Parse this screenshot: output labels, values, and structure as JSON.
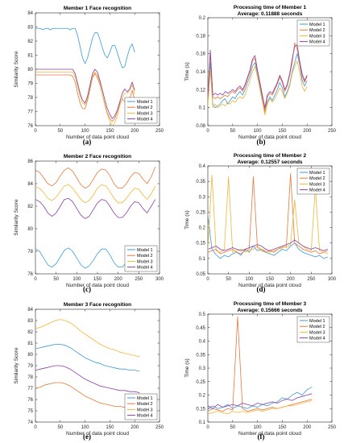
{
  "colors": {
    "model_1": "#3d9ad8",
    "model_2": "#e8773e",
    "model_3": "#f0b63a",
    "model_4": "#8a3fa3",
    "axis": "#262626",
    "grid": "#d9d9d9"
  },
  "chart_data": [
    {
      "id": "a",
      "type": "line",
      "panel_label": "(a)",
      "title": "Member 1 Face recognition",
      "subtitle": "",
      "xlabel": "Number of data point cloud",
      "ylabel": "Similarity Score",
      "xlim": [
        0,
        250
      ],
      "ylim": [
        76,
        84
      ],
      "xticks": [
        "0",
        "50",
        "100",
        "150",
        "200",
        "250"
      ],
      "yticks": [
        "76",
        "77",
        "78",
        "79",
        "80",
        "81",
        "82",
        "83",
        "84"
      ],
      "legend_position": "bottom-right",
      "x_step": 5,
      "series": [
        {
          "name": "Model 1",
          "values": [
            82.9,
            82.9,
            82.9,
            82.8,
            82.9,
            82.9,
            82.8,
            82.9,
            82.9,
            82.9,
            82.9,
            82.9,
            82.9,
            82.9,
            82.8,
            82.9,
            82.9,
            82.4,
            81.6,
            80.8,
            80.4,
            80.8,
            81.5,
            82.2,
            82.6,
            82.6,
            82.1,
            81.5,
            81.0,
            80.8,
            81.2,
            81.7,
            81.7,
            81.2,
            80.6,
            80.1,
            80.2,
            80.9,
            81.5,
            81.8,
            81.2
          ]
        },
        {
          "name": "Model 2",
          "values": [
            79.6,
            79.6,
            79.6,
            79.6,
            79.6,
            79.6,
            79.6,
            79.6,
            79.6,
            79.6,
            79.6,
            79.6,
            79.6,
            79.6,
            79.6,
            79.5,
            79.1,
            78.3,
            77.6,
            77.2,
            77.2,
            77.8,
            78.6,
            79.4,
            79.7,
            79.4,
            78.9,
            78.2,
            77.5,
            76.9,
            76.5,
            76.3,
            76.5,
            77.0,
            77.6,
            77.9,
            77.7,
            77.5,
            77.9,
            78.5,
            77.8
          ]
        },
        {
          "name": "Model 3",
          "values": [
            79.8,
            79.8,
            79.8,
            79.8,
            79.8,
            79.8,
            79.8,
            79.8,
            79.8,
            79.8,
            79.8,
            79.8,
            79.8,
            79.8,
            79.8,
            79.8,
            79.5,
            78.8,
            78.1,
            77.6,
            77.5,
            78.0,
            78.8,
            79.5,
            79.8,
            79.6,
            79.0,
            78.2,
            77.4,
            76.8,
            76.3,
            76.0,
            76.2,
            76.7,
            77.4,
            78.0,
            78.3,
            78.3,
            78.5,
            78.9,
            78.2
          ]
        },
        {
          "name": "Model 4",
          "values": [
            80.0,
            80.0,
            80.0,
            80.0,
            80.0,
            80.0,
            80.0,
            80.0,
            80.0,
            80.0,
            80.0,
            80.0,
            80.0,
            80.0,
            80.0,
            80.0,
            79.7,
            79.0,
            78.3,
            77.8,
            77.6,
            78.1,
            78.9,
            79.7,
            80.0,
            79.8,
            79.2,
            78.5,
            77.8,
            77.2,
            76.8,
            76.5,
            76.7,
            77.1,
            77.7,
            78.3,
            78.6,
            78.4,
            78.6,
            79.1,
            78.5
          ]
        }
      ]
    },
    {
      "id": "b",
      "type": "line",
      "panel_label": "(b)",
      "title": "Processing time of Member 1",
      "subtitle": "Average: 0.11888 seconds",
      "xlabel": "Number of data point cloud",
      "ylabel": "Time (s)",
      "xlim": [
        0,
        250
      ],
      "ylim": [
        0.08,
        0.2
      ],
      "xticks": [
        "0",
        "50",
        "100",
        "150",
        "200",
        "250"
      ],
      "yticks": [
        "0.08",
        "0.1",
        "0.12",
        "0.14",
        "0.16",
        "0.18",
        "0.2"
      ],
      "legend_position": "top-right",
      "x_step": 5,
      "series": [
        {
          "name": "Model 1",
          "values": [
            0.106,
            0.15,
            0.104,
            0.1,
            0.102,
            0.104,
            0.108,
            0.11,
            0.104,
            0.108,
            0.112,
            0.11,
            0.115,
            0.118,
            0.114,
            0.12,
            0.128,
            0.135,
            0.146,
            0.15,
            0.138,
            0.124,
            0.11,
            0.098,
            0.106,
            0.112,
            0.108,
            0.114,
            0.12,
            0.128,
            0.122,
            0.112,
            0.118,
            0.126,
            0.14,
            0.15,
            0.16,
            0.148,
            0.13,
            0.124,
            0.13
          ]
        },
        {
          "name": "Model 2",
          "values": [
            0.108,
            0.16,
            0.112,
            0.11,
            0.112,
            0.11,
            0.112,
            0.114,
            0.112,
            0.116,
            0.118,
            0.116,
            0.12,
            0.122,
            0.118,
            0.124,
            0.132,
            0.14,
            0.152,
            0.155,
            0.14,
            0.126,
            0.112,
            0.095,
            0.112,
            0.116,
            0.114,
            0.12,
            0.126,
            0.134,
            0.128,
            0.118,
            0.124,
            0.136,
            0.15,
            0.172,
            0.165,
            0.15,
            0.135,
            0.128,
            0.135
          ]
        },
        {
          "name": "Model 3",
          "values": [
            0.102,
            0.142,
            0.1,
            0.104,
            0.1,
            0.102,
            0.104,
            0.102,
            0.106,
            0.104,
            0.108,
            0.106,
            0.11,
            0.112,
            0.11,
            0.114,
            0.122,
            0.13,
            0.14,
            0.146,
            0.134,
            0.12,
            0.106,
            0.092,
            0.104,
            0.11,
            0.106,
            0.11,
            0.116,
            0.122,
            0.118,
            0.11,
            0.116,
            0.124,
            0.138,
            0.146,
            0.152,
            0.14,
            0.124,
            0.118,
            0.124
          ]
        },
        {
          "name": "Model 4",
          "values": [
            0.112,
            0.164,
            0.114,
            0.116,
            0.114,
            0.116,
            0.114,
            0.118,
            0.116,
            0.118,
            0.12,
            0.118,
            0.122,
            0.124,
            0.12,
            0.126,
            0.134,
            0.142,
            0.154,
            0.158,
            0.142,
            0.128,
            0.114,
            0.1,
            0.114,
            0.118,
            0.116,
            0.122,
            0.128,
            0.136,
            0.13,
            0.12,
            0.126,
            0.138,
            0.154,
            0.168,
            0.17,
            0.152,
            0.138,
            0.13,
            0.136
          ]
        }
      ]
    },
    {
      "id": "c",
      "type": "line",
      "panel_label": "(c)",
      "title": "Member 2 Face recognition",
      "subtitle": "",
      "xlabel": "Number of data point cloud",
      "ylabel": "Similarity Score",
      "xlim": [
        0,
        300
      ],
      "ylim": [
        76,
        86
      ],
      "xticks": [
        "0",
        "50",
        "100",
        "150",
        "200",
        "250",
        "300"
      ],
      "yticks": [
        "76",
        "78",
        "80",
        "82",
        "84",
        "86"
      ],
      "legend_position": "bottom-right",
      "x_step": 10,
      "series": [
        {
          "name": "Model 1",
          "values": [
            78.2,
            78.0,
            77.4,
            76.8,
            76.6,
            76.9,
            77.5,
            78.1,
            78.3,
            78.0,
            77.4,
            76.8,
            76.5,
            76.7,
            77.2,
            77.8,
            78.2,
            78.2,
            77.7,
            77.0,
            76.6,
            76.6,
            77.0,
            77.6,
            78.0,
            77.9,
            77.3,
            76.7,
            76.5,
            76.8
          ]
        },
        {
          "name": "Model 2",
          "values": [
            85.2,
            85.0,
            84.5,
            84.0,
            83.8,
            84.1,
            84.7,
            85.2,
            85.4,
            85.1,
            84.5,
            83.9,
            83.6,
            83.8,
            84.4,
            85.0,
            85.3,
            85.2,
            84.7,
            84.0,
            83.6,
            83.6,
            84.0,
            84.6,
            85.0,
            84.9,
            84.4,
            84.0,
            84.6,
            85.5
          ]
        },
        {
          "name": "Model 3",
          "values": [
            83.7,
            83.6,
            83.2,
            82.7,
            82.5,
            82.8,
            83.3,
            83.8,
            83.9,
            83.6,
            83.1,
            82.6,
            82.3,
            82.5,
            83.0,
            83.6,
            83.9,
            83.8,
            83.3,
            82.7,
            82.3,
            82.3,
            82.7,
            83.2,
            83.6,
            83.5,
            83.0,
            82.6,
            83.1,
            83.8
          ]
        },
        {
          "name": "Model 4",
          "values": [
            82.6,
            82.4,
            82.0,
            81.4,
            81.1,
            81.4,
            82.0,
            82.6,
            82.7,
            82.4,
            81.8,
            81.2,
            80.9,
            81.1,
            81.7,
            82.3,
            82.6,
            82.5,
            82.0,
            81.4,
            81.0,
            81.0,
            81.4,
            82.0,
            82.4,
            82.3,
            81.8,
            81.4,
            82.0,
            82.6
          ]
        }
      ]
    },
    {
      "id": "d",
      "type": "line",
      "panel_label": "(d)",
      "title": "Processing time of Member 2",
      "subtitle": "Average: 0.12557 seconds",
      "xlabel": "Number of data point cloud",
      "ylabel": "Time (s)",
      "xlim": [
        0,
        300
      ],
      "ylim": [
        0.05,
        0.4
      ],
      "xticks": [
        "0",
        "50",
        "100",
        "150",
        "200",
        "250",
        "300"
      ],
      "yticks": [
        "0.05",
        "0.1",
        "0.15",
        "0.2",
        "0.25",
        "0.3",
        "0.35",
        "0.4"
      ],
      "legend_position": "top-right",
      "x_step": 10,
      "series": [
        {
          "name": "Model 1",
          "values": [
            0.24,
            0.13,
            0.112,
            0.1,
            0.11,
            0.105,
            0.115,
            0.12,
            0.11,
            0.13,
            0.12,
            0.14,
            0.125,
            0.13,
            0.12,
            0.115,
            0.11,
            0.12,
            0.13,
            0.125,
            0.14,
            0.15,
            0.13,
            0.12,
            0.115,
            0.11,
            0.105,
            0.11,
            0.1,
            0.105
          ]
        },
        {
          "name": "Model 2",
          "values": [
            0.12,
            0.125,
            0.13,
            0.115,
            0.12,
            0.125,
            0.13,
            0.12,
            0.115,
            0.125,
            0.13,
            0.365,
            0.135,
            0.125,
            0.12,
            0.125,
            0.12,
            0.13,
            0.135,
            0.14,
            0.375,
            0.15,
            0.14,
            0.13,
            0.125,
            0.12,
            0.125,
            0.115,
            0.12,
            0.125
          ]
        },
        {
          "name": "Model 3",
          "values": [
            0.125,
            0.37,
            0.125,
            0.12,
            0.13,
            0.365,
            0.12,
            0.125,
            0.13,
            0.12,
            0.125,
            0.13,
            0.14,
            0.13,
            0.125,
            0.12,
            0.125,
            0.13,
            0.14,
            0.135,
            0.145,
            0.29,
            0.15,
            0.14,
            0.13,
            0.125,
            0.33,
            0.125,
            0.12,
            0.115
          ]
        },
        {
          "name": "Model 4",
          "values": [
            0.13,
            0.135,
            0.14,
            0.13,
            0.125,
            0.13,
            0.135,
            0.13,
            0.125,
            0.13,
            0.135,
            0.14,
            0.145,
            0.14,
            0.13,
            0.125,
            0.13,
            0.135,
            0.14,
            0.145,
            0.15,
            0.16,
            0.15,
            0.14,
            0.135,
            0.13,
            0.135,
            0.13,
            0.125,
            0.13
          ]
        }
      ]
    },
    {
      "id": "e",
      "type": "line",
      "panel_label": "(e)",
      "title": "Member 3 Face recognition",
      "subtitle": "",
      "xlabel": "Number of data point cloud",
      "ylabel": "Similarity Score",
      "xlim": [
        0,
        250
      ],
      "ylim": [
        74,
        84
      ],
      "xticks": [
        "0",
        "50",
        "100",
        "150",
        "200",
        "250"
      ],
      "yticks": [
        "74",
        "75",
        "76",
        "77",
        "78",
        "79",
        "80",
        "81",
        "82",
        "83",
        "84"
      ],
      "legend_position": "bottom-right",
      "x_step": 10,
      "series": [
        {
          "name": "Model 1",
          "values": [
            80.5,
            80.6,
            80.7,
            80.8,
            80.9,
            80.9,
            80.8,
            80.6,
            80.3,
            80.0,
            79.7,
            79.5,
            79.3,
            79.2,
            79.0,
            78.9,
            78.8,
            78.7,
            78.7,
            78.6,
            78.6,
            78.5
          ]
        },
        {
          "name": "Model 2",
          "values": [
            77.0,
            77.1,
            77.3,
            77.4,
            77.5,
            77.5,
            77.4,
            77.2,
            76.9,
            76.6,
            76.3,
            76.1,
            75.9,
            75.7,
            75.6,
            75.5,
            75.4,
            75.4,
            75.3,
            75.3,
            75.2,
            75.2
          ]
        },
        {
          "name": "Model 3",
          "values": [
            82.3,
            82.4,
            82.6,
            82.8,
            83.0,
            83.1,
            83.0,
            82.8,
            82.5,
            82.1,
            81.8,
            81.5,
            81.2,
            80.9,
            80.7,
            80.5,
            80.4,
            80.2,
            80.1,
            80.0,
            79.9,
            79.8
          ]
        },
        {
          "name": "Model 4",
          "values": [
            78.6,
            78.7,
            78.8,
            78.9,
            79.0,
            79.0,
            78.9,
            78.7,
            78.4,
            78.1,
            77.8,
            77.6,
            77.4,
            77.2,
            77.1,
            77.0,
            76.9,
            76.8,
            76.8,
            76.7,
            76.7,
            76.6
          ]
        }
      ]
    },
    {
      "id": "f",
      "type": "line",
      "panel_label": "(f)",
      "title": "Processing time of Member 3",
      "subtitle": "Average: 0.15666 seconds",
      "xlabel": "Number of data point cloud",
      "ylabel": "Time (s)",
      "xlim": [
        0,
        250
      ],
      "ylim": [
        0.1,
        0.5
      ],
      "xticks": [
        "0",
        "50",
        "100",
        "150",
        "200",
        "250"
      ],
      "yticks": [
        "0.1",
        "0.15",
        "0.2",
        "0.25",
        "0.3",
        "0.35",
        "0.4",
        "0.45",
        "0.5"
      ],
      "legend_position": "top-right",
      "x_step": 10,
      "series": [
        {
          "name": "Model 1",
          "values": [
            0.15,
            0.16,
            0.15,
            0.155,
            0.165,
            0.15,
            0.16,
            0.155,
            0.15,
            0.16,
            0.155,
            0.165,
            0.16,
            0.17,
            0.175,
            0.19,
            0.185,
            0.2,
            0.21,
            0.2,
            0.22,
            0.23
          ]
        },
        {
          "name": "Model 2",
          "values": [
            0.14,
            0.15,
            0.145,
            0.14,
            0.15,
            0.145,
            0.49,
            0.15,
            0.14,
            0.145,
            0.15,
            0.145,
            0.15,
            0.155,
            0.15,
            0.155,
            0.16,
            0.165,
            0.17,
            0.175,
            0.18,
            0.185
          ]
        },
        {
          "name": "Model 3",
          "values": [
            0.13,
            0.135,
            0.14,
            0.135,
            0.13,
            0.14,
            0.135,
            0.14,
            0.135,
            0.14,
            0.145,
            0.14,
            0.145,
            0.15,
            0.15,
            0.155,
            0.16,
            0.16,
            0.165,
            0.17,
            0.175,
            0.18
          ]
        },
        {
          "name": "Model 4",
          "values": [
            0.16,
            0.15,
            0.165,
            0.155,
            0.16,
            0.165,
            0.16,
            0.17,
            0.165,
            0.16,
            0.17,
            0.165,
            0.17,
            0.175,
            0.17,
            0.18,
            0.185,
            0.18,
            0.19,
            0.195,
            0.2,
            0.205
          ]
        }
      ]
    }
  ]
}
